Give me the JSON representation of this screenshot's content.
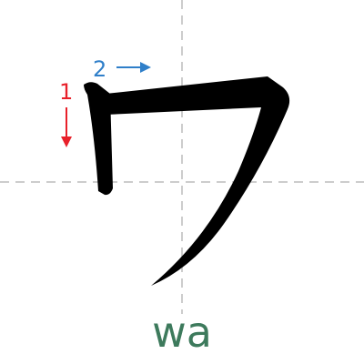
{
  "character": {
    "glyph": "ワ",
    "romaji": "wa"
  },
  "strokes": [
    {
      "number": "1",
      "direction": "down",
      "color": "#e8202a"
    },
    {
      "number": "2",
      "direction": "right",
      "color": "#2f7fc9"
    }
  ],
  "colors": {
    "background": "#ffffff",
    "guide_lines": "#cccccc",
    "glyph": "#000000",
    "romaji": "#3d7a5c"
  },
  "guides": {
    "style": "dashed",
    "lines": [
      "horizontal-center",
      "vertical-center"
    ]
  }
}
